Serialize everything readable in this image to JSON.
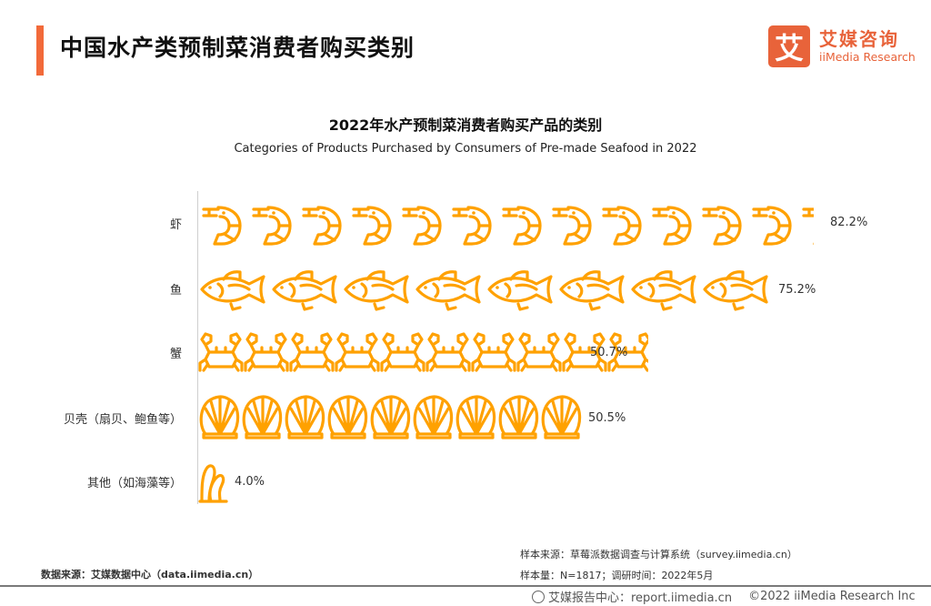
{
  "header": {
    "title": "中国水产类预制菜消费者购买类别",
    "accent_color": "#f26a3a"
  },
  "logo": {
    "mark": "艾",
    "cn": "艾媒咨询",
    "en": "iiMedia Research",
    "color": "#e8633a"
  },
  "chart_data": {
    "type": "bar",
    "orientation": "horizontal",
    "style": "pictograph",
    "title": "2022年水产预制菜消费者购买产品的类别",
    "subtitle": "Categories of Products Purchased by Consumers of Pre-made Seafood in 2022",
    "categories": [
      "虾",
      "鱼",
      "蟹",
      "贝壳（扇贝、鲍鱼等）",
      "其他（如海藻等）"
    ],
    "values": [
      82.2,
      75.2,
      50.7,
      50.5,
      4.0
    ],
    "value_labels": [
      "82.2%",
      "75.2%",
      "50.7%",
      "50.5%",
      "4.0%"
    ],
    "icons": [
      "shrimp-icon",
      "fish-icon",
      "crab-icon",
      "shell-icon",
      "seaweed-icon"
    ],
    "unit": "%",
    "color": "#ffa100",
    "grid": false,
    "legend": "none"
  },
  "rows": [
    {
      "label": "虾",
      "value": "82.2%"
    },
    {
      "label": "鱼",
      "value": "75.2%"
    },
    {
      "label": "蟹",
      "value": "50.7%"
    },
    {
      "label": "贝壳（扇贝、鲍鱼等）",
      "value": "50.5%"
    },
    {
      "label": "其他（如海藻等）",
      "value": "4.0%"
    }
  ],
  "footer": {
    "data_source": "数据来源：艾媒数据中心（data.iimedia.cn）",
    "sample_source": "样本来源：草莓派数据调查与计算系统（survey.iimedia.cn）",
    "sample_size": "样本量：N=1817；调研时间：2022年5月",
    "report_center": "艾媒报告中心：report.iimedia.cn",
    "copyright": "©2022  iiMedia Research  Inc"
  }
}
